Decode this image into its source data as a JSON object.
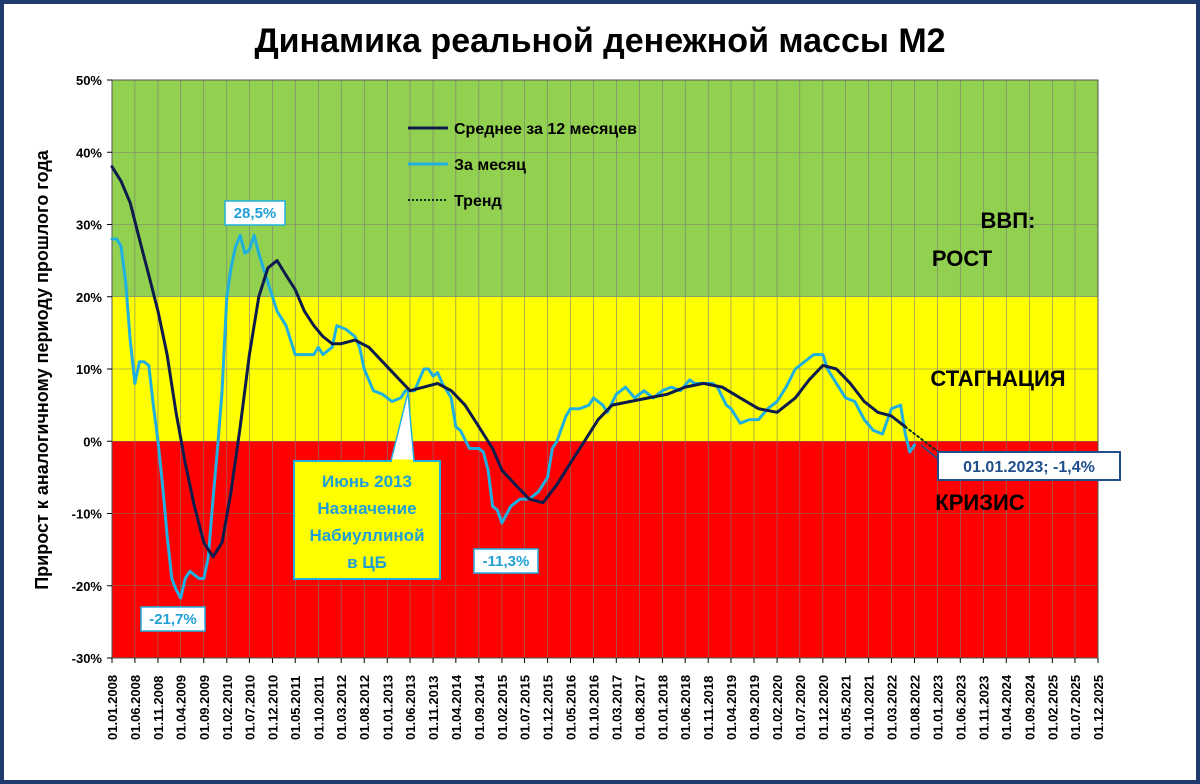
{
  "chart_data": {
    "type": "line",
    "title": "Динамика реальной денежной массы М2",
    "ylabel": "Прирост к аналогичному периоду прошлого года",
    "ylim": [
      -30,
      50
    ],
    "y_ticks": [
      "-30%",
      "-20%",
      "-10%",
      "0%",
      "10%",
      "20%",
      "30%",
      "40%",
      "50%"
    ],
    "x_range": [
      "2008-01-01",
      "2025-12-01"
    ],
    "x_tick_labels": [
      "01.01.2008",
      "01.06.2008",
      "01.11.2008",
      "01.04.2009",
      "01.09.2009",
      "01.02.2010",
      "01.07.2010",
      "01.12.2010",
      "01.05.2011",
      "01.10.2011",
      "01.03.2012",
      "01.08.2012",
      "01.01.2013",
      "01.06.2013",
      "01.11.2013",
      "01.04.2014",
      "01.09.2014",
      "01.02.2015",
      "01.07.2015",
      "01.12.2015",
      "01.05.2016",
      "01.10.2016",
      "01.03.2017",
      "01.08.2017",
      "01.01.2018",
      "01.06.2018",
      "01.11.2018",
      "01.04.2019",
      "01.09.2019",
      "01.02.2020",
      "01.07.2020",
      "01.12.2020",
      "01.05.2021",
      "01.10.2021",
      "01.03.2022",
      "01.08.2022",
      "01.01.2023",
      "01.06.2023",
      "01.11.2023",
      "01.04.2024",
      "01.09.2024",
      "01.02.2025",
      "01.07.2025",
      "01.12.2025"
    ],
    "zones": [
      {
        "label": "КРИЗИС",
        "from": -30,
        "to": 0,
        "color": "#ff0000"
      },
      {
        "label": "СТАГНАЦИЯ",
        "from": 0,
        "to": 20,
        "color": "#ffff00"
      },
      {
        "label": "ВВП:",
        "from": 20,
        "to": 50,
        "color": "#92d050"
      },
      {
        "label": "РОСТ",
        "from": 20,
        "to": 50,
        "color": "#92d050"
      }
    ],
    "legend": {
      "placement": "top-left",
      "entries": [
        "Среднее за 12 месяцев",
        "За месяц",
        "Тренд"
      ]
    },
    "series": [
      {
        "name": "Среднее за 12 месяцев",
        "color": "#0d1b4d",
        "points": [
          [
            "2008-01-01",
            38
          ],
          [
            "2008-03-01",
            36
          ],
          [
            "2008-05-01",
            33
          ],
          [
            "2008-07-01",
            28
          ],
          [
            "2008-09-01",
            23
          ],
          [
            "2008-11-01",
            18
          ],
          [
            "2009-01-01",
            12
          ],
          [
            "2009-03-01",
            4
          ],
          [
            "2009-05-01",
            -3
          ],
          [
            "2009-07-01",
            -9
          ],
          [
            "2009-09-01",
            -14
          ],
          [
            "2009-11-01",
            -16
          ],
          [
            "2010-01-01",
            -14
          ],
          [
            "2010-03-01",
            -7
          ],
          [
            "2010-05-01",
            2
          ],
          [
            "2010-07-01",
            12
          ],
          [
            "2010-09-01",
            20
          ],
          [
            "2010-11-01",
            24
          ],
          [
            "2011-01-01",
            25
          ],
          [
            "2011-03-01",
            23
          ],
          [
            "2011-05-01",
            21
          ],
          [
            "2011-07-01",
            18
          ],
          [
            "2011-09-01",
            16
          ],
          [
            "2011-11-01",
            14.5
          ],
          [
            "2012-01-01",
            13.5
          ],
          [
            "2012-03-01",
            13.5
          ],
          [
            "2012-06-01",
            14
          ],
          [
            "2012-09-01",
            13
          ],
          [
            "2012-12-01",
            11
          ],
          [
            "2013-03-01",
            9
          ],
          [
            "2013-06-01",
            7
          ],
          [
            "2013-09-01",
            7.5
          ],
          [
            "2013-12-01",
            8
          ],
          [
            "2014-03-01",
            7
          ],
          [
            "2014-06-01",
            5
          ],
          [
            "2014-09-01",
            2
          ],
          [
            "2014-12-01",
            -1
          ],
          [
            "2015-02-01",
            -4
          ],
          [
            "2015-05-01",
            -6
          ],
          [
            "2015-08-01",
            -8
          ],
          [
            "2015-11-01",
            -8.5
          ],
          [
            "2016-02-01",
            -6
          ],
          [
            "2016-05-01",
            -3
          ],
          [
            "2016-08-01",
            0
          ],
          [
            "2016-11-01",
            3
          ],
          [
            "2017-02-01",
            5
          ],
          [
            "2017-06-01",
            5.5
          ],
          [
            "2017-10-01",
            6
          ],
          [
            "2018-02-01",
            6.5
          ],
          [
            "2018-06-01",
            7.5
          ],
          [
            "2018-10-01",
            8
          ],
          [
            "2019-02-01",
            7.5
          ],
          [
            "2019-06-01",
            6
          ],
          [
            "2019-10-01",
            4.5
          ],
          [
            "2020-02-01",
            4
          ],
          [
            "2020-06-01",
            6
          ],
          [
            "2020-09-01",
            8.5
          ],
          [
            "2020-12-01",
            10.5
          ],
          [
            "2021-03-01",
            10
          ],
          [
            "2021-06-01",
            8
          ],
          [
            "2021-09-01",
            5.5
          ],
          [
            "2021-12-01",
            4
          ],
          [
            "2022-03-01",
            3.5
          ],
          [
            "2022-06-01",
            2
          ]
        ]
      },
      {
        "name": "За месяц",
        "color": "#20b0e0",
        "points": [
          [
            "2008-01-01",
            28
          ],
          [
            "2008-02-01",
            28
          ],
          [
            "2008-03-01",
            27
          ],
          [
            "2008-04-01",
            22
          ],
          [
            "2008-05-01",
            14
          ],
          [
            "2008-06-01",
            8
          ],
          [
            "2008-07-01",
            11
          ],
          [
            "2008-08-01",
            11
          ],
          [
            "2008-09-01",
            10.5
          ],
          [
            "2008-10-01",
            5
          ],
          [
            "2008-11-01",
            0
          ],
          [
            "2008-12-01",
            -6
          ],
          [
            "2009-01-01",
            -13
          ],
          [
            "2009-02-01",
            -19
          ],
          [
            "2009-03-01",
            -20.5
          ],
          [
            "2009-04-01",
            -21.7
          ],
          [
            "2009-05-01",
            -19
          ],
          [
            "2009-06-01",
            -18
          ],
          [
            "2009-07-01",
            -18.5
          ],
          [
            "2009-08-01",
            -19
          ],
          [
            "2009-09-01",
            -19
          ],
          [
            "2009-10-01",
            -16
          ],
          [
            "2009-11-01",
            -8
          ],
          [
            "2009-12-01",
            -1
          ],
          [
            "2010-01-01",
            7
          ],
          [
            "2010-02-01",
            20
          ],
          [
            "2010-03-01",
            24
          ],
          [
            "2010-04-01",
            27
          ],
          [
            "2010-05-01",
            28.5
          ],
          [
            "2010-06-01",
            26
          ],
          [
            "2010-07-01",
            26.5
          ],
          [
            "2010-08-01",
            28.5
          ],
          [
            "2010-09-01",
            26
          ],
          [
            "2010-10-01",
            24
          ],
          [
            "2010-11-01",
            22
          ],
          [
            "2011-01-01",
            18
          ],
          [
            "2011-03-01",
            16
          ],
          [
            "2011-05-01",
            12
          ],
          [
            "2011-07-01",
            12
          ],
          [
            "2011-09-01",
            12
          ],
          [
            "2011-10-01",
            13
          ],
          [
            "2011-11-01",
            12
          ],
          [
            "2012-01-01",
            13
          ],
          [
            "2012-02-01",
            16
          ],
          [
            "2012-04-01",
            15.5
          ],
          [
            "2012-06-01",
            14.5
          ],
          [
            "2012-07-01",
            13
          ],
          [
            "2012-08-01",
            10
          ],
          [
            "2012-10-01",
            7
          ],
          [
            "2012-12-01",
            6.5
          ],
          [
            "2013-02-01",
            5.5
          ],
          [
            "2013-04-01",
            6
          ],
          [
            "2013-05-01",
            7
          ],
          [
            "2013-07-01",
            7
          ],
          [
            "2013-09-01",
            10
          ],
          [
            "2013-10-01",
            10
          ],
          [
            "2013-11-01",
            9
          ],
          [
            "2013-12-01",
            9.5
          ],
          [
            "2014-01-01",
            8
          ],
          [
            "2014-03-01",
            6
          ],
          [
            "2014-04-01",
            2
          ],
          [
            "2014-05-01",
            1.5
          ],
          [
            "2014-07-01",
            -1
          ],
          [
            "2014-09-01",
            -1
          ],
          [
            "2014-10-01",
            -1.5
          ],
          [
            "2014-11-01",
            -4
          ],
          [
            "2014-12-01",
            -9
          ],
          [
            "2015-01-01",
            -9.5
          ],
          [
            "2015-02-01",
            -11.3
          ],
          [
            "2015-04-01",
            -9
          ],
          [
            "2015-06-01",
            -8
          ],
          [
            "2015-08-01",
            -8
          ],
          [
            "2015-10-01",
            -7
          ],
          [
            "2015-12-01",
            -5
          ],
          [
            "2016-01-01",
            -1
          ],
          [
            "2016-02-01",
            0
          ],
          [
            "2016-04-01",
            3.5
          ],
          [
            "2016-05-01",
            4.5
          ],
          [
            "2016-07-01",
            4.5
          ],
          [
            "2016-09-01",
            5
          ],
          [
            "2016-10-01",
            6
          ],
          [
            "2016-12-01",
            5
          ],
          [
            "2017-01-01",
            4
          ],
          [
            "2017-03-01",
            6.5
          ],
          [
            "2017-05-01",
            7.5
          ],
          [
            "2017-07-01",
            6
          ],
          [
            "2017-09-01",
            7
          ],
          [
            "2017-11-01",
            6
          ],
          [
            "2018-01-01",
            7
          ],
          [
            "2018-03-01",
            7.5
          ],
          [
            "2018-05-01",
            7
          ],
          [
            "2018-07-01",
            8.5
          ],
          [
            "2018-08-01",
            8
          ],
          [
            "2018-10-01",
            8
          ],
          [
            "2018-12-01",
            8
          ],
          [
            "2019-01-01",
            7.5
          ],
          [
            "2019-03-01",
            5
          ],
          [
            "2019-04-01",
            4.5
          ],
          [
            "2019-06-01",
            2.5
          ],
          [
            "2019-08-01",
            3
          ],
          [
            "2019-10-01",
            3
          ],
          [
            "2019-12-01",
            4.5
          ],
          [
            "2020-02-01",
            5.5
          ],
          [
            "2020-04-01",
            7.5
          ],
          [
            "2020-06-01",
            10
          ],
          [
            "2020-08-01",
            11
          ],
          [
            "2020-10-01",
            12
          ],
          [
            "2020-12-01",
            12
          ],
          [
            "2021-01-01",
            10
          ],
          [
            "2021-03-01",
            8
          ],
          [
            "2021-05-01",
            6
          ],
          [
            "2021-07-01",
            5.5
          ],
          [
            "2021-09-01",
            3
          ],
          [
            "2021-11-01",
            1.5
          ],
          [
            "2022-01-01",
            1
          ],
          [
            "2022-03-01",
            4.5
          ],
          [
            "2022-05-01",
            5
          ],
          [
            "2022-06-01",
            1
          ],
          [
            "2022-07-01",
            -1.5
          ],
          [
            "2022-08-01",
            -0.5
          ]
        ]
      },
      {
        "name": "Тренд",
        "color": "#0a3020",
        "dashed": true,
        "points": [
          [
            "2022-06-01",
            2
          ],
          [
            "2023-01-01",
            -1.4
          ]
        ]
      }
    ],
    "annotations": [
      {
        "text": "28,5%",
        "x": "2010-08-01",
        "y": 28.5
      },
      {
        "text": "-21,7%",
        "x": "2009-04-01",
        "y": -21.7
      },
      {
        "text": "-11,3%",
        "x": "2015-02-01",
        "y": -11.3
      },
      {
        "text": "01.01.2023; -1,4%",
        "x": "2023-01-01",
        "y": -1.4
      },
      {
        "lines": [
          "Июнь 2013",
          "Назначение",
          "Набиуллиной",
          "в ЦБ"
        ],
        "x": "2013-06-01",
        "y": 7
      }
    ]
  }
}
